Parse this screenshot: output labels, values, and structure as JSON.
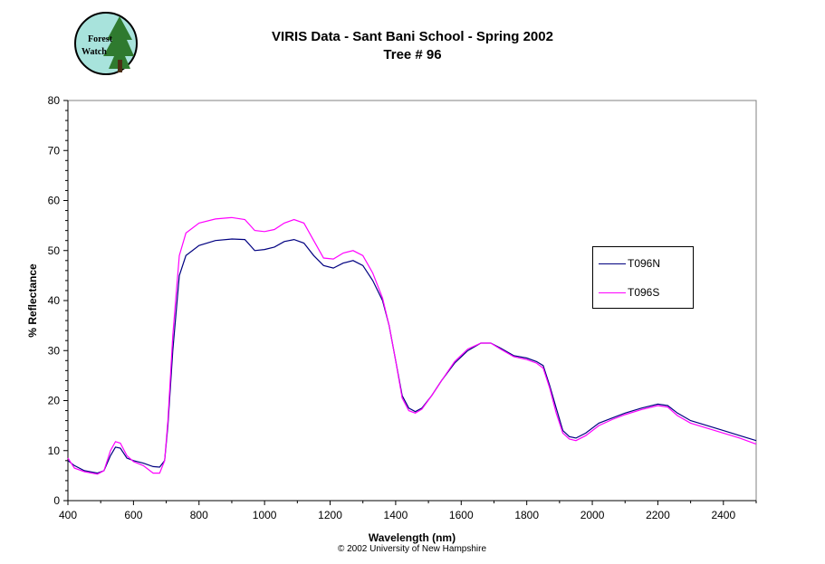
{
  "logo": {
    "text_line1": "Forest",
    "text_line2": "Watch"
  },
  "chart_data": {
    "type": "line",
    "title": "VIRIS Data - Sant Bani School - Spring 2002",
    "subtitle": "Tree # 96",
    "xlabel": "Wavelength (nm)",
    "ylabel": "% Reflectance",
    "xlim": [
      400,
      2500
    ],
    "ylim": [
      0,
      80
    ],
    "xticks": [
      400,
      600,
      800,
      1000,
      1200,
      1400,
      1600,
      1800,
      2000,
      2200,
      2400
    ],
    "yticks": [
      0,
      10,
      20,
      30,
      40,
      50,
      60,
      70,
      80
    ],
    "grid": false,
    "legend_position": "right",
    "series": [
      {
        "name": "T096N",
        "color": "#000080",
        "points": [
          [
            400,
            8
          ],
          [
            420,
            7
          ],
          [
            450,
            6
          ],
          [
            490,
            5.5
          ],
          [
            510,
            6
          ],
          [
            530,
            9
          ],
          [
            545,
            10.7
          ],
          [
            560,
            10.5
          ],
          [
            580,
            8.5
          ],
          [
            600,
            8
          ],
          [
            630,
            7.5
          ],
          [
            660,
            6.8
          ],
          [
            680,
            6.7
          ],
          [
            695,
            8
          ],
          [
            705,
            15
          ],
          [
            720,
            30
          ],
          [
            740,
            45
          ],
          [
            760,
            49
          ],
          [
            800,
            51
          ],
          [
            850,
            52
          ],
          [
            900,
            52.3
          ],
          [
            940,
            52.2
          ],
          [
            970,
            50
          ],
          [
            1000,
            50.2
          ],
          [
            1030,
            50.7
          ],
          [
            1060,
            51.8
          ],
          [
            1090,
            52.2
          ],
          [
            1120,
            51.5
          ],
          [
            1150,
            49
          ],
          [
            1180,
            47
          ],
          [
            1210,
            46.5
          ],
          [
            1240,
            47.5
          ],
          [
            1270,
            48
          ],
          [
            1300,
            47
          ],
          [
            1330,
            44
          ],
          [
            1360,
            40
          ],
          [
            1380,
            35
          ],
          [
            1400,
            28
          ],
          [
            1420,
            21
          ],
          [
            1440,
            18.5
          ],
          [
            1460,
            17.8
          ],
          [
            1480,
            18.5
          ],
          [
            1510,
            21
          ],
          [
            1540,
            24
          ],
          [
            1580,
            27.5
          ],
          [
            1620,
            30
          ],
          [
            1660,
            31.5
          ],
          [
            1690,
            31.5
          ],
          [
            1720,
            30.5
          ],
          [
            1760,
            29
          ],
          [
            1800,
            28.5
          ],
          [
            1830,
            27.8
          ],
          [
            1850,
            27
          ],
          [
            1870,
            23
          ],
          [
            1890,
            18.5
          ],
          [
            1910,
            14
          ],
          [
            1930,
            12.8
          ],
          [
            1950,
            12.5
          ],
          [
            1980,
            13.5
          ],
          [
            2020,
            15.5
          ],
          [
            2060,
            16.5
          ],
          [
            2100,
            17.5
          ],
          [
            2150,
            18.5
          ],
          [
            2200,
            19.3
          ],
          [
            2230,
            19
          ],
          [
            2260,
            17.5
          ],
          [
            2300,
            16
          ],
          [
            2350,
            15
          ],
          [
            2400,
            14
          ],
          [
            2450,
            13
          ],
          [
            2500,
            12
          ]
        ]
      },
      {
        "name": "T096S",
        "color": "#ff00ff",
        "points": [
          [
            400,
            8.5
          ],
          [
            420,
            6.5
          ],
          [
            450,
            5.8
          ],
          [
            490,
            5.3
          ],
          [
            510,
            6
          ],
          [
            530,
            10
          ],
          [
            545,
            11.8
          ],
          [
            560,
            11.5
          ],
          [
            580,
            9
          ],
          [
            600,
            7.8
          ],
          [
            630,
            7
          ],
          [
            660,
            5.5
          ],
          [
            680,
            5.5
          ],
          [
            695,
            8
          ],
          [
            705,
            16
          ],
          [
            720,
            33
          ],
          [
            740,
            49
          ],
          [
            760,
            53.5
          ],
          [
            800,
            55.5
          ],
          [
            850,
            56.3
          ],
          [
            900,
            56.6
          ],
          [
            940,
            56.2
          ],
          [
            970,
            54
          ],
          [
            1000,
            53.8
          ],
          [
            1030,
            54.2
          ],
          [
            1060,
            55.5
          ],
          [
            1090,
            56.2
          ],
          [
            1120,
            55.5
          ],
          [
            1150,
            52
          ],
          [
            1180,
            48.5
          ],
          [
            1210,
            48.3
          ],
          [
            1240,
            49.5
          ],
          [
            1270,
            50
          ],
          [
            1300,
            49
          ],
          [
            1330,
            45.5
          ],
          [
            1360,
            40.5
          ],
          [
            1380,
            35
          ],
          [
            1400,
            28
          ],
          [
            1420,
            20.5
          ],
          [
            1440,
            18
          ],
          [
            1460,
            17.5
          ],
          [
            1480,
            18.3
          ],
          [
            1510,
            21
          ],
          [
            1540,
            24
          ],
          [
            1580,
            27.8
          ],
          [
            1620,
            30.3
          ],
          [
            1660,
            31.5
          ],
          [
            1690,
            31.5
          ],
          [
            1720,
            30.3
          ],
          [
            1760,
            28.8
          ],
          [
            1800,
            28.2
          ],
          [
            1830,
            27.5
          ],
          [
            1850,
            26.5
          ],
          [
            1870,
            22.5
          ],
          [
            1890,
            17.5
          ],
          [
            1910,
            13.5
          ],
          [
            1930,
            12.3
          ],
          [
            1950,
            12
          ],
          [
            1980,
            13
          ],
          [
            2020,
            15
          ],
          [
            2060,
            16.2
          ],
          [
            2100,
            17.2
          ],
          [
            2150,
            18.2
          ],
          [
            2200,
            19
          ],
          [
            2230,
            18.7
          ],
          [
            2260,
            17
          ],
          [
            2300,
            15.5
          ],
          [
            2350,
            14.5
          ],
          [
            2400,
            13.5
          ],
          [
            2450,
            12.5
          ],
          [
            2500,
            11.3
          ]
        ]
      }
    ]
  },
  "copyright": "© 2002 University of New Hampshire"
}
